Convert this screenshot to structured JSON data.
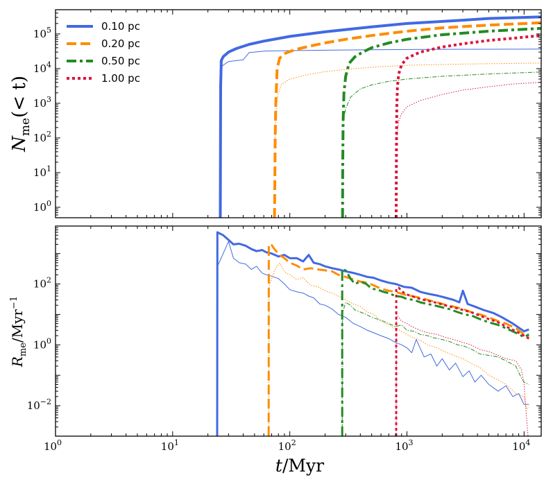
{
  "chart_data": [
    {
      "type": "line",
      "panel": "top",
      "xscale": "log",
      "yscale": "log",
      "xlim": [
        1,
        14000
      ],
      "ylim": [
        0.5,
        500000
      ],
      "ylabel": "N_me(< t)",
      "yticks": [
        {
          "v": 1,
          "label": "10",
          "exp": "0"
        },
        {
          "v": 10,
          "label": "10",
          "exp": "1"
        },
        {
          "v": 100,
          "label": "10",
          "exp": "2"
        },
        {
          "v": 1000,
          "label": "10",
          "exp": "3"
        },
        {
          "v": 10000,
          "label": "10",
          "exp": "4"
        },
        {
          "v": 100000,
          "label": "10",
          "exp": "5"
        }
      ],
      "legend": {
        "position": "top-left"
      },
      "series": [
        {
          "name": "0.10 pc",
          "key": "s010",
          "style": "solid",
          "color": "#4169e1",
          "width": 4,
          "x": [
            25.5,
            25.7,
            26,
            27,
            30,
            35,
            45,
            60,
            100,
            200,
            500,
            1000,
            3000,
            5000,
            14000
          ],
          "y": [
            0.5,
            3000,
            17000,
            22000,
            30000,
            38000,
            50000,
            62000,
            85000,
            115000,
            160000,
            200000,
            250000,
            280000,
            310000
          ]
        },
        {
          "name": "0.10 pc (thin)",
          "key": "s010t",
          "style": "solid",
          "color": "#4169e1",
          "width": 1,
          "x": [
            25.5,
            26.5,
            30,
            40,
            45,
            50,
            60,
            100,
            200,
            500,
            1000,
            2000,
            14000
          ],
          "y": [
            3000,
            12000,
            16000,
            18000,
            29000,
            30000,
            32000,
            33000,
            34000,
            35000,
            35500,
            36000,
            36500
          ]
        },
        {
          "name": "0.20 pc",
          "key": "s020",
          "style": "dashed",
          "color": "#ff8c00",
          "width": 4,
          "x": [
            74,
            74.5,
            75,
            76,
            78,
            82,
            90,
            110,
            150,
            200,
            300,
            500,
            1000,
            2000,
            5000,
            14000
          ],
          "y": [
            0.5,
            5,
            100,
            1000,
            10000,
            20000,
            27000,
            35000,
            45000,
            55000,
            70000,
            90000,
            120000,
            150000,
            180000,
            210000
          ]
        },
        {
          "name": "0.20 pc (thin)",
          "key": "s020t",
          "style": "dotted",
          "color": "#ff8c00",
          "width": 1,
          "x": [
            75,
            78,
            85,
            100,
            150,
            200,
            300,
            500,
            1000,
            3000,
            14000
          ],
          "y": [
            100,
            1500,
            3500,
            5000,
            7000,
            8200,
            9500,
            11000,
            12500,
            13500,
            14500
          ]
        },
        {
          "name": "0.50 pc",
          "key": "s050",
          "style": "dashdot",
          "color": "#228b22",
          "width": 4,
          "x": [
            282,
            283,
            285,
            290,
            300,
            320,
            360,
            420,
            500,
            700,
            1000,
            2000,
            5000,
            14000
          ],
          "y": [
            0.5,
            10,
            300,
            2000,
            6000,
            14000,
            22000,
            30000,
            40000,
            55000,
            70000,
            95000,
            120000,
            145000
          ]
        },
        {
          "name": "0.50 pc (thin)",
          "key": "s050t",
          "style": "dashdot",
          "color": "#228b22",
          "width": 1,
          "x": [
            285,
            300,
            330,
            400,
            500,
            700,
            1000,
            2000,
            5000,
            14000
          ],
          "y": [
            300,
            700,
            1500,
            2600,
            3400,
            4300,
            5000,
            6000,
            7000,
            8000
          ]
        },
        {
          "name": "1.00 pc",
          "key": "s100",
          "style": "dotted",
          "color": "#dc143c",
          "width": 4,
          "x": [
            810,
            812,
            815,
            820,
            830,
            850,
            900,
            1000,
            1300,
            2000,
            3000,
            5000,
            8000,
            14000
          ],
          "y": [
            0.5,
            10,
            100,
            800,
            3000,
            7000,
            13000,
            20000,
            30000,
            42000,
            52000,
            65000,
            75000,
            90000
          ]
        },
        {
          "name": "1.00 pc (thin)",
          "key": "s100t",
          "style": "dotted",
          "color": "#dc143c",
          "width": 1,
          "x": [
            815,
            850,
            900,
            1000,
            1300,
            2000,
            3000,
            5000,
            8000,
            14000
          ],
          "y": [
            100,
            300,
            500,
            800,
            1200,
            1800,
            2400,
            3000,
            3600,
            4000
          ]
        }
      ]
    },
    {
      "type": "line",
      "panel": "bottom",
      "xscale": "log",
      "yscale": "log",
      "xlim": [
        1,
        14000
      ],
      "ylim": [
        0.001,
        8000
      ],
      "xlabel": "t/Myr",
      "ylabel": "R_me/Myr^-1",
      "xticks": [
        {
          "v": 1,
          "label": "10",
          "exp": "0"
        },
        {
          "v": 10,
          "label": "10",
          "exp": "1"
        },
        {
          "v": 100,
          "label": "10",
          "exp": "2"
        },
        {
          "v": 1000,
          "label": "10",
          "exp": "3"
        },
        {
          "v": 10000,
          "label": "10",
          "exp": "4"
        }
      ],
      "yticks": [
        {
          "v": 0.01,
          "label": "10",
          "exp": "−2"
        },
        {
          "v": 1,
          "label": "10",
          "exp": "0"
        },
        {
          "v": 100,
          "label": "10",
          "exp": "2"
        }
      ],
      "series": [
        {
          "name": "0.10 pc",
          "key": "s010",
          "style": "solid",
          "color": "#4169e1",
          "width": 3,
          "x": [
            24,
            24.1,
            27,
            30,
            33,
            37,
            42,
            47,
            52,
            58,
            63,
            70,
            80,
            90,
            100,
            115,
            130,
            145,
            160,
            180,
            200,
            230,
            260,
            300,
            350,
            400,
            460,
            520,
            600,
            700,
            800,
            950,
            1100,
            1300,
            1500,
            1800,
            2100,
            2500,
            2800,
            3000,
            3300,
            3800,
            4500,
            5500,
            6500,
            8000,
            10000,
            11000
          ],
          "y": [
            0.001,
            5000,
            4000,
            2800,
            2000,
            2100,
            1800,
            1400,
            1200,
            1300,
            1100,
            1000,
            800,
            900,
            700,
            700,
            550,
            900,
            500,
            450,
            380,
            330,
            300,
            260,
            230,
            200,
            170,
            160,
            130,
            110,
            100,
            80,
            75,
            55,
            48,
            42,
            36,
            30,
            25,
            60,
            22,
            18,
            14,
            11,
            8,
            5,
            2.8,
            3.2
          ]
        },
        {
          "name": "0.10 pc (thin)",
          "key": "s010t",
          "style": "solid",
          "color": "#4169e1",
          "width": 1,
          "x": [
            24,
            24.3,
            27,
            30,
            33,
            37,
            42,
            47,
            52,
            58,
            63,
            70,
            80,
            90,
            100,
            115,
            130,
            145,
            160,
            180,
            200,
            230,
            260,
            300,
            350,
            400,
            460,
            520,
            600,
            700,
            800,
            900,
            1000,
            1100,
            1200,
            1400,
            1600,
            1800,
            2000,
            2300,
            2600,
            3000,
            3400,
            3800,
            4300,
            5000,
            6000,
            7000,
            8000,
            9000,
            10000,
            11000
          ],
          "y": [
            0.001,
            400,
            1000,
            2500,
            700,
            500,
            450,
            300,
            380,
            230,
            200,
            180,
            150,
            100,
            65,
            55,
            50,
            40,
            35,
            22,
            20,
            15,
            10,
            8,
            5,
            4,
            3,
            2.5,
            2.0,
            1.6,
            1.2,
            1.0,
            0.8,
            0.55,
            1.5,
            0.4,
            0.5,
            0.2,
            0.35,
            0.15,
            0.25,
            0.09,
            0.14,
            0.06,
            0.1,
            0.05,
            0.03,
            0.045,
            0.02,
            0.025,
            0.011,
            0.011
          ]
        },
        {
          "name": "0.20 pc",
          "key": "s020",
          "style": "dashed",
          "color": "#ff8c00",
          "width": 3,
          "x": [
            66,
            66.2,
            70,
            75,
            82,
            90,
            100,
            115,
            130,
            150,
            175,
            200,
            230,
            260,
            300,
            350,
            400,
            460,
            520,
            600,
            700,
            800,
            950,
            1100,
            1300,
            1500,
            1800,
            2100,
            2500,
            3000,
            3500,
            4200,
            5000,
            6000,
            7000,
            8500,
            10000,
            11000
          ],
          "y": [
            0.001,
            2000,
            1900,
            1300,
            900,
            700,
            500,
            400,
            300,
            330,
            300,
            280,
            260,
            200,
            170,
            140,
            120,
            110,
            90,
            70,
            60,
            55,
            45,
            40,
            35,
            30,
            25,
            21,
            18,
            15,
            12,
            10,
            8,
            6,
            5,
            3.5,
            2.2,
            1.8
          ]
        },
        {
          "name": "0.20 pc (thin)",
          "key": "s020t",
          "style": "dotted",
          "color": "#ff8c00",
          "width": 1,
          "x": [
            66,
            66.5,
            70,
            75,
            82,
            90,
            100,
            115,
            130,
            150,
            175,
            200,
            230,
            260,
            300,
            350,
            400,
            460,
            520,
            600,
            700,
            800,
            950,
            1100,
            1300,
            1500,
            1800,
            2100,
            2500,
            3000,
            3500,
            4200,
            5000,
            6000,
            7000,
            8500,
            10000,
            10500,
            11000
          ],
          "y": [
            0.001,
            80,
            150,
            300,
            500,
            250,
            200,
            140,
            160,
            90,
            80,
            60,
            50,
            40,
            30,
            22,
            18,
            12,
            10,
            6,
            4.5,
            3.5,
            2.5,
            1.8,
            1.4,
            1.0,
            0.8,
            0.6,
            0.45,
            0.35,
            0.25,
            0.18,
            0.1,
            0.07,
            0.05,
            0.025,
            0.02,
            0.008,
            0.009
          ]
        },
        {
          "name": "0.50 pc",
          "key": "s050",
          "style": "dashdot",
          "color": "#228b22",
          "width": 3,
          "x": [
            280,
            280.3,
            300,
            330,
            360,
            400,
            450,
            500,
            560,
            630,
            700,
            800,
            900,
            1000,
            1150,
            1300,
            1500,
            1700,
            2000,
            2300,
            2700,
            3100,
            3600,
            4200,
            5000,
            6000,
            7000,
            8500,
            10000,
            11000
          ],
          "y": [
            0.001,
            300,
            280,
            150,
            100,
            120,
            100,
            70,
            65,
            55,
            50,
            40,
            38,
            32,
            30,
            25,
            22,
            20,
            17,
            15,
            12,
            10,
            9,
            7,
            5.5,
            4.5,
            3.5,
            2.5,
            1.8,
            2.2
          ]
        },
        {
          "name": "0.50 pc (thin)",
          "key": "s050t",
          "style": "dashdot",
          "color": "#228b22",
          "width": 1,
          "x": [
            280,
            280.5,
            300,
            330,
            360,
            400,
            450,
            500,
            560,
            630,
            700,
            800,
            900,
            1000,
            1150,
            1300,
            1500,
            1700,
            2000,
            2300,
            2700,
            3100,
            3600,
            4200,
            5000,
            6000,
            7000,
            8500,
            9500,
            10000,
            11000
          ],
          "y": [
            0.001,
            10,
            25,
            20,
            14,
            12,
            10,
            8,
            7,
            6,
            5,
            4,
            4.5,
            3,
            2.8,
            2.2,
            2.0,
            1.7,
            1.5,
            1.3,
            1.0,
            0.9,
            0.7,
            0.5,
            0.45,
            0.4,
            0.3,
            0.2,
            0.08,
            0.06,
            0.05
          ]
        },
        {
          "name": "1.00 pc",
          "key": "s100",
          "style": "dotted",
          "color": "#dc143c",
          "width": 3,
          "x": [
            810,
            810.2,
            850,
            900,
            950,
            1000,
            1100,
            1300,
            1500,
            1800,
            2100,
            2500,
            3000,
            3500,
            4200,
            5000,
            6000,
            7000,
            8500,
            10000,
            11000
          ],
          "y": [
            0.001,
            70,
            75,
            60,
            50,
            45,
            40,
            32,
            28,
            24,
            20,
            17,
            14,
            12,
            9,
            7,
            5.5,
            4,
            2.8,
            2.0,
            1.6
          ]
        },
        {
          "name": "1.00 pc (thin)",
          "key": "s100t",
          "style": "dotted",
          "color": "#dc143c",
          "width": 1,
          "x": [
            810,
            811,
            850,
            900,
            1000,
            1100,
            1300,
            1500,
            1800,
            2100,
            2500,
            3000,
            3500,
            4200,
            5000,
            6000,
            7000,
            8500,
            9500,
            10000,
            10300,
            10800
          ],
          "y": [
            0.001,
            10,
            8,
            6,
            5,
            4,
            3,
            2.5,
            2.2,
            1.8,
            1.5,
            1.2,
            1.0,
            0.7,
            0.6,
            0.45,
            0.35,
            0.3,
            0.15,
            0.05,
            0.01,
            0.001
          ]
        }
      ]
    }
  ],
  "legend_items": [
    {
      "label": "0.10 pc",
      "key": "s010"
    },
    {
      "label": "0.20 pc",
      "key": "s020"
    },
    {
      "label": "0.50 pc",
      "key": "s050"
    },
    {
      "label": "1.00 pc",
      "key": "s100"
    }
  ],
  "labels": {
    "top_ylabel_main": "N",
    "top_ylabel_sub": "me",
    "top_ylabel_rest": "(< t)",
    "bottom_ylabel_main": "R",
    "bottom_ylabel_sub": "me",
    "bottom_ylabel_rest": "/Myr",
    "bottom_ylabel_sup": "−1",
    "xlabel_italic": "t",
    "xlabel_rest": "/Myr"
  },
  "styles": {
    "s010": {
      "color": "#4169e1",
      "dash": "none"
    },
    "s020": {
      "color": "#ff8c00",
      "dash": "dashed"
    },
    "s050": {
      "color": "#228b22",
      "dash": "dashdot"
    },
    "s100": {
      "color": "#dc143c",
      "dash": "dotted"
    }
  }
}
